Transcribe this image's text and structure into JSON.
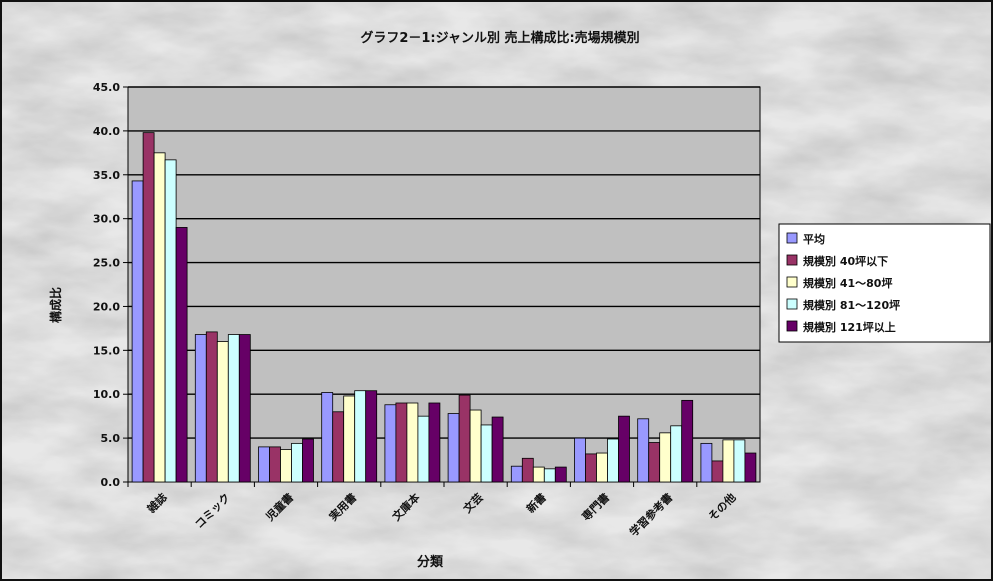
{
  "chart_data": {
    "type": "bar",
    "title": "グラフ2－1:ジャンル別 売上構成比:売場規模別",
    "xlabel": "分類",
    "ylabel": "構成比",
    "ylim": [
      0,
      45
    ],
    "ytick_labels": [
      "0.0",
      "5.0",
      "10.0",
      "15.0",
      "20.0",
      "25.0",
      "30.0",
      "35.0",
      "40.0",
      "45.0"
    ],
    "grid": true,
    "legend_position": "right",
    "categories": [
      "雑誌",
      "コミック",
      "児童書",
      "実用書",
      "文庫本",
      "文芸",
      "新書",
      "専門書",
      "学習参考書",
      "その他"
    ],
    "series": [
      {
        "name": "平均",
        "color": "#9999ff",
        "values": [
          34.3,
          16.8,
          4.0,
          10.2,
          8.8,
          7.8,
          1.8,
          5.0,
          7.2,
          4.4
        ]
      },
      {
        "name": "規模別 40坪以下",
        "color": "#993366",
        "values": [
          39.8,
          17.1,
          4.0,
          8.0,
          9.0,
          9.9,
          2.7,
          3.2,
          4.5,
          2.4
        ]
      },
      {
        "name": "規模別 41～80坪",
        "color": "#ffffcc",
        "values": [
          37.5,
          16.0,
          3.7,
          9.8,
          9.0,
          8.2,
          1.7,
          3.3,
          5.6,
          4.8
        ]
      },
      {
        "name": "規模別 81～120坪",
        "color": "#ccffff",
        "values": [
          36.7,
          16.8,
          4.4,
          10.4,
          7.5,
          6.5,
          1.5,
          4.9,
          6.4,
          4.8
        ]
      },
      {
        "name": "規模別 121坪以上",
        "color": "#660066",
        "values": [
          29.0,
          16.8,
          4.9,
          10.4,
          9.0,
          7.4,
          1.7,
          7.5,
          9.3,
          3.3
        ]
      }
    ]
  },
  "colors": {
    "plot_background": "#c0c0c0",
    "gridline": "#000000"
  }
}
